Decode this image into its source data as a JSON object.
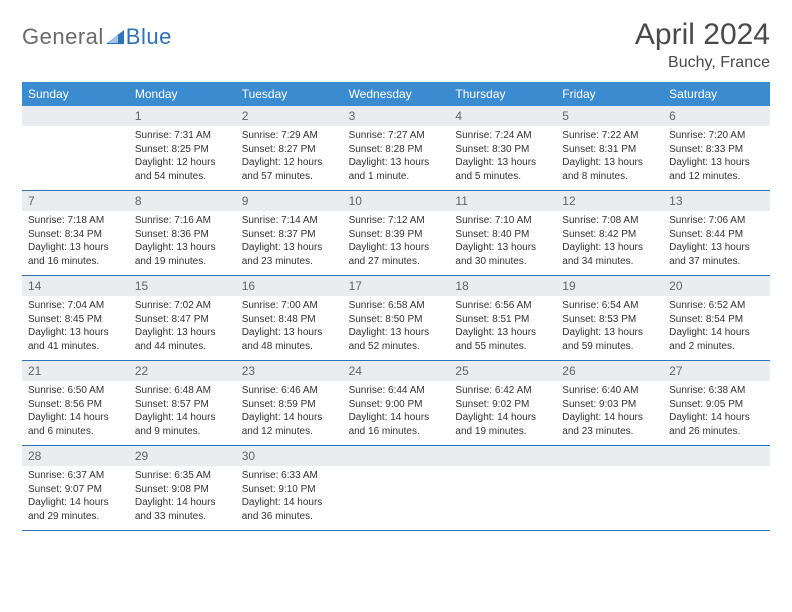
{
  "logo": {
    "part1": "General",
    "part2": "Blue"
  },
  "title": "April 2024",
  "location": "Buchy, France",
  "colors": {
    "header_bg": "#3b8bd0",
    "header_text": "#ffffff",
    "daynum_bg": "#e9edef",
    "daynum_text": "#606568",
    "divider": "#2e72b8",
    "logo_gray": "#6a6a6a",
    "logo_blue": "#2e72b8"
  },
  "day_names": [
    "Sunday",
    "Monday",
    "Tuesday",
    "Wednesday",
    "Thursday",
    "Friday",
    "Saturday"
  ],
  "weeks": [
    [
      {
        "n": "",
        "sr": "",
        "ss": "",
        "dl": ""
      },
      {
        "n": "1",
        "sr": "Sunrise: 7:31 AM",
        "ss": "Sunset: 8:25 PM",
        "dl": "Daylight: 12 hours and 54 minutes."
      },
      {
        "n": "2",
        "sr": "Sunrise: 7:29 AM",
        "ss": "Sunset: 8:27 PM",
        "dl": "Daylight: 12 hours and 57 minutes."
      },
      {
        "n": "3",
        "sr": "Sunrise: 7:27 AM",
        "ss": "Sunset: 8:28 PM",
        "dl": "Daylight: 13 hours and 1 minute."
      },
      {
        "n": "4",
        "sr": "Sunrise: 7:24 AM",
        "ss": "Sunset: 8:30 PM",
        "dl": "Daylight: 13 hours and 5 minutes."
      },
      {
        "n": "5",
        "sr": "Sunrise: 7:22 AM",
        "ss": "Sunset: 8:31 PM",
        "dl": "Daylight: 13 hours and 8 minutes."
      },
      {
        "n": "6",
        "sr": "Sunrise: 7:20 AM",
        "ss": "Sunset: 8:33 PM",
        "dl": "Daylight: 13 hours and 12 minutes."
      }
    ],
    [
      {
        "n": "7",
        "sr": "Sunrise: 7:18 AM",
        "ss": "Sunset: 8:34 PM",
        "dl": "Daylight: 13 hours and 16 minutes."
      },
      {
        "n": "8",
        "sr": "Sunrise: 7:16 AM",
        "ss": "Sunset: 8:36 PM",
        "dl": "Daylight: 13 hours and 19 minutes."
      },
      {
        "n": "9",
        "sr": "Sunrise: 7:14 AM",
        "ss": "Sunset: 8:37 PM",
        "dl": "Daylight: 13 hours and 23 minutes."
      },
      {
        "n": "10",
        "sr": "Sunrise: 7:12 AM",
        "ss": "Sunset: 8:39 PM",
        "dl": "Daylight: 13 hours and 27 minutes."
      },
      {
        "n": "11",
        "sr": "Sunrise: 7:10 AM",
        "ss": "Sunset: 8:40 PM",
        "dl": "Daylight: 13 hours and 30 minutes."
      },
      {
        "n": "12",
        "sr": "Sunrise: 7:08 AM",
        "ss": "Sunset: 8:42 PM",
        "dl": "Daylight: 13 hours and 34 minutes."
      },
      {
        "n": "13",
        "sr": "Sunrise: 7:06 AM",
        "ss": "Sunset: 8:44 PM",
        "dl": "Daylight: 13 hours and 37 minutes."
      }
    ],
    [
      {
        "n": "14",
        "sr": "Sunrise: 7:04 AM",
        "ss": "Sunset: 8:45 PM",
        "dl": "Daylight: 13 hours and 41 minutes."
      },
      {
        "n": "15",
        "sr": "Sunrise: 7:02 AM",
        "ss": "Sunset: 8:47 PM",
        "dl": "Daylight: 13 hours and 44 minutes."
      },
      {
        "n": "16",
        "sr": "Sunrise: 7:00 AM",
        "ss": "Sunset: 8:48 PM",
        "dl": "Daylight: 13 hours and 48 minutes."
      },
      {
        "n": "17",
        "sr": "Sunrise: 6:58 AM",
        "ss": "Sunset: 8:50 PM",
        "dl": "Daylight: 13 hours and 52 minutes."
      },
      {
        "n": "18",
        "sr": "Sunrise: 6:56 AM",
        "ss": "Sunset: 8:51 PM",
        "dl": "Daylight: 13 hours and 55 minutes."
      },
      {
        "n": "19",
        "sr": "Sunrise: 6:54 AM",
        "ss": "Sunset: 8:53 PM",
        "dl": "Daylight: 13 hours and 59 minutes."
      },
      {
        "n": "20",
        "sr": "Sunrise: 6:52 AM",
        "ss": "Sunset: 8:54 PM",
        "dl": "Daylight: 14 hours and 2 minutes."
      }
    ],
    [
      {
        "n": "21",
        "sr": "Sunrise: 6:50 AM",
        "ss": "Sunset: 8:56 PM",
        "dl": "Daylight: 14 hours and 6 minutes."
      },
      {
        "n": "22",
        "sr": "Sunrise: 6:48 AM",
        "ss": "Sunset: 8:57 PM",
        "dl": "Daylight: 14 hours and 9 minutes."
      },
      {
        "n": "23",
        "sr": "Sunrise: 6:46 AM",
        "ss": "Sunset: 8:59 PM",
        "dl": "Daylight: 14 hours and 12 minutes."
      },
      {
        "n": "24",
        "sr": "Sunrise: 6:44 AM",
        "ss": "Sunset: 9:00 PM",
        "dl": "Daylight: 14 hours and 16 minutes."
      },
      {
        "n": "25",
        "sr": "Sunrise: 6:42 AM",
        "ss": "Sunset: 9:02 PM",
        "dl": "Daylight: 14 hours and 19 minutes."
      },
      {
        "n": "26",
        "sr": "Sunrise: 6:40 AM",
        "ss": "Sunset: 9:03 PM",
        "dl": "Daylight: 14 hours and 23 minutes."
      },
      {
        "n": "27",
        "sr": "Sunrise: 6:38 AM",
        "ss": "Sunset: 9:05 PM",
        "dl": "Daylight: 14 hours and 26 minutes."
      }
    ],
    [
      {
        "n": "28",
        "sr": "Sunrise: 6:37 AM",
        "ss": "Sunset: 9:07 PM",
        "dl": "Daylight: 14 hours and 29 minutes."
      },
      {
        "n": "29",
        "sr": "Sunrise: 6:35 AM",
        "ss": "Sunset: 9:08 PM",
        "dl": "Daylight: 14 hours and 33 minutes."
      },
      {
        "n": "30",
        "sr": "Sunrise: 6:33 AM",
        "ss": "Sunset: 9:10 PM",
        "dl": "Daylight: 14 hours and 36 minutes."
      },
      {
        "n": "",
        "sr": "",
        "ss": "",
        "dl": ""
      },
      {
        "n": "",
        "sr": "",
        "ss": "",
        "dl": ""
      },
      {
        "n": "",
        "sr": "",
        "ss": "",
        "dl": ""
      },
      {
        "n": "",
        "sr": "",
        "ss": "",
        "dl": ""
      }
    ]
  ]
}
